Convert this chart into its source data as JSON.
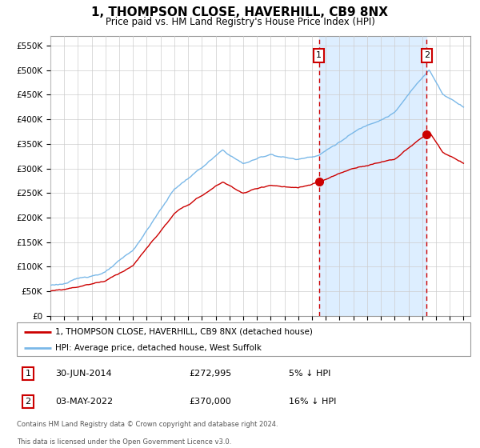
{
  "title": "1, THOMPSON CLOSE, HAVERHILL, CB9 8NX",
  "subtitle": "Price paid vs. HM Land Registry's House Price Index (HPI)",
  "ylim": [
    0,
    570000
  ],
  "yticks": [
    0,
    50000,
    100000,
    150000,
    200000,
    250000,
    300000,
    350000,
    400000,
    450000,
    500000,
    550000
  ],
  "ytick_labels": [
    "£0",
    "£50K",
    "£100K",
    "£150K",
    "£200K",
    "£250K",
    "£300K",
    "£350K",
    "£400K",
    "£450K",
    "£500K",
    "£550K"
  ],
  "hpi_color": "#7ab8e8",
  "price_color": "#cc0000",
  "marker_color": "#cc0000",
  "vline_color": "#cc0000",
  "shading_color": "#ddeeff",
  "grid_color": "#cccccc",
  "bg_color": "#ffffff",
  "annotation_box_color": "#cc0000",
  "sale1_year": 2014.5,
  "sale1_price": 272995,
  "sale1_date": "30-JUN-2014",
  "sale1_text": "£272,995",
  "sale1_hpi_diff": "5% ↓ HPI",
  "sale2_year": 2022.33,
  "sale2_price": 370000,
  "sale2_date": "03-MAY-2022",
  "sale2_text": "£370,000",
  "sale2_hpi_diff": "16% ↓ HPI",
  "legend1_label": "1, THOMPSON CLOSE, HAVERHILL, CB9 8NX (detached house)",
  "legend2_label": "HPI: Average price, detached house, West Suffolk",
  "footer1": "Contains HM Land Registry data © Crown copyright and database right 2024.",
  "footer2": "This data is licensed under the Open Government Licence v3.0."
}
